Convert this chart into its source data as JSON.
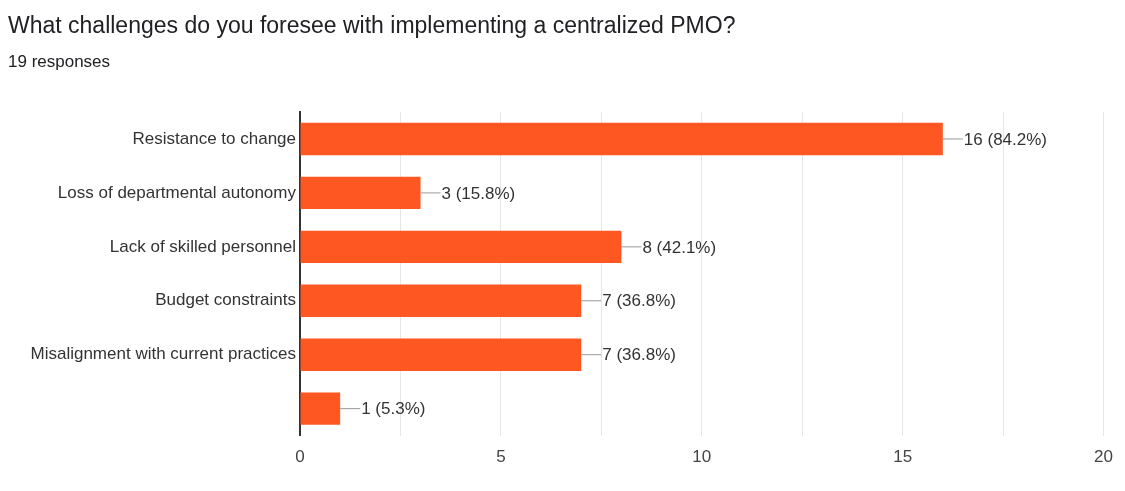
{
  "chart_data": {
    "type": "bar",
    "orientation": "horizontal",
    "title": "What challenges do you foresee with implementing a centralized PMO?",
    "subtitle": "19 responses",
    "categories": [
      "Resistance to change",
      "Loss of departmental autonomy",
      "Lack of skilled personnel",
      "Budget constraints",
      "Misalignment with current practices",
      null
    ],
    "values": [
      16,
      3,
      8,
      7,
      7,
      1
    ],
    "color": "#ff5722",
    "value_labels": [
      "16 (84.2%)",
      "3 (15.8%)",
      "8 (42.1%)",
      "7 (36.8%)",
      "7 (36.8%)",
      "1 (5.3%)"
    ],
    "xlim": [
      0,
      20
    ],
    "xticks": [
      0,
      {
        "value": 2.5,
        "label": null
      },
      5,
      {
        "value": 7.5,
        "label": null
      },
      10,
      {
        "value": 12.5,
        "label": null
      },
      15,
      {
        "value": 17.5,
        "label": null
      },
      20
    ],
    "grid": "x",
    "legend": false
  }
}
